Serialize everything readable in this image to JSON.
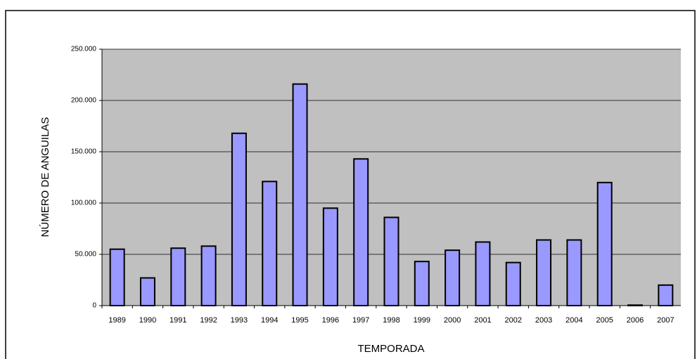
{
  "chart_data": {
    "type": "bar",
    "y_label": "NÚMERO DE ANGUILAS",
    "x_label": "TEMPORADA",
    "categories": [
      "1989",
      "1990",
      "1991",
      "1992",
      "1993",
      "1994",
      "1995",
      "1996",
      "1997",
      "1998",
      "1999",
      "2000",
      "2001",
      "2002",
      "2003",
      "2004",
      "2005",
      "2006",
      "2007"
    ],
    "values": [
      55000,
      27000,
      56000,
      58000,
      168000,
      121000,
      216000,
      95000,
      143000,
      86000,
      43000,
      54000,
      62000,
      42000,
      64000,
      64000,
      120000,
      500,
      20000
    ],
    "color": "#9999ff",
    "ylim": [
      0,
      250000
    ],
    "yticks": [
      0,
      {
        "value": 50000,
        "label": "50.000"
      },
      {
        "value": 100000,
        "label": "100.000"
      },
      {
        "value": 150000,
        "label": "150.000"
      },
      {
        "value": 200000,
        "label": "200.000"
      },
      {
        "value": 250000,
        "label": "250.000"
      }
    ],
    "grid": true
  }
}
